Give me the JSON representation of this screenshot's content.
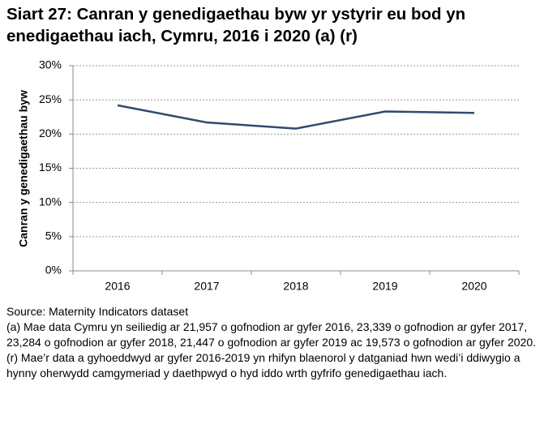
{
  "chart_data": {
    "type": "line",
    "title": "Siart 27: Canran y genedigaethau byw yr ystyrir eu bod yn enedigaethau iach, Cymru, 2016 i 2020 (a) (r)",
    "y_label": "Canran y genedigaethau byw",
    "categories": [
      "2016",
      "2017",
      "2018",
      "2019",
      "2020"
    ],
    "values": [
      24.2,
      21.7,
      20.8,
      23.3,
      23.1
    ],
    "color": "#2f4b6e",
    "ylim": [
      0,
      30
    ],
    "yticks": [
      {
        "value": 0,
        "label": "0%"
      },
      {
        "value": 5,
        "label": "5%"
      },
      {
        "value": 10,
        "label": "10%"
      },
      {
        "value": 15,
        "label": "15%"
      },
      {
        "value": 20,
        "label": "20%"
      },
      {
        "value": 25,
        "label": "25%"
      },
      {
        "value": 30,
        "label": "30%"
      }
    ],
    "grid": true,
    "notes": [
      "Source: Maternity Indicators dataset",
      "(a) Mae data Cymru yn seiliedig ar 21,957 o gofnodion ar gyfer 2016, 23,339 o gofnodion ar gyfer 2017, 23,284 o gofnodion ar gyfer 2018, 21,447 o gofnodion ar gyfer 2019 ac 19,573 o gofnodion ar gyfer 2020.",
      "(r) Mae’r data a gyhoeddwyd ar gyfer 2016-2019 yn rhifyn blaenorol y datganiad hwn wedi’i ddiwygio a hynny oherwydd camgymeriad y daethpwyd o hyd iddo wrth gyfrifo genedigaethau iach."
    ]
  }
}
